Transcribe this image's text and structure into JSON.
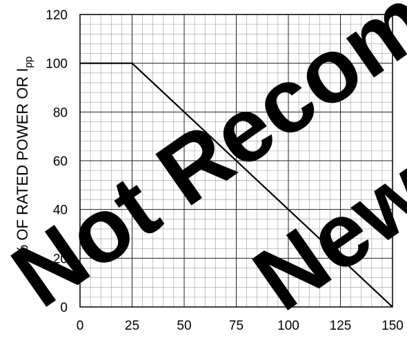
{
  "chart_data": {
    "type": "line",
    "ylabel_main": "% OF RATED POWER OR I",
    "ylabel_sub": "pp",
    "x": [
      0,
      25,
      150
    ],
    "y": [
      100,
      100,
      0
    ],
    "xlim": [
      0,
      150
    ],
    "ylim": [
      0,
      120
    ],
    "xticks": [
      "0",
      "25",
      "50",
      "75",
      "100",
      "125",
      "150"
    ],
    "yticks": [
      "0",
      "20",
      "40",
      "60",
      "80",
      "100",
      "120"
    ],
    "grid": true,
    "line_color": "#000000"
  },
  "watermark": {
    "line1": "Not Recom",
    "line2": "New"
  }
}
